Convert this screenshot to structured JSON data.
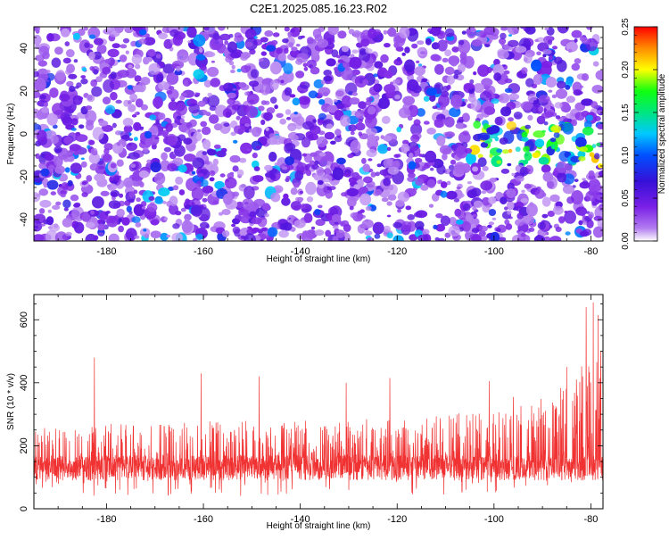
{
  "page": {
    "title": "C2E1.2025.085.16.23.R02"
  },
  "chart_data": [
    {
      "type": "heatmap",
      "xlabel": "Height of straight line (km)",
      "ylabel": "Frequency (Hz)",
      "xlim": [
        -195,
        -77.5
      ],
      "ylim": [
        -50,
        50
      ],
      "x_ticks": [
        -180,
        -160,
        -140,
        -120,
        -100,
        -80
      ],
      "y_ticks": [
        -40,
        -20,
        0,
        20,
        40
      ],
      "colorbar": {
        "label": "Normalized spectral amplitude",
        "range": [
          0.0,
          0.25
        ],
        "ticks": [
          0.0,
          0.05,
          0.1,
          0.15,
          0.2,
          0.25
        ],
        "tick_labels": [
          "0.00",
          "0.05",
          "0.10",
          "0.15",
          "0.20",
          "0.25"
        ],
        "colormap": [
          "#ffffff",
          "#b27cf0",
          "#7a1fe6",
          "#3510d8",
          "#0050ff",
          "#00c8ff",
          "#00e680",
          "#10ff10",
          "#ffff00",
          "#ff8c00",
          "#ff0000"
        ]
      },
      "background_level": 0.03,
      "hotspot_region": {
        "x": [
          -105,
          -78
        ],
        "y": [
          -15,
          5
        ],
        "level": 0.17
      },
      "grid": false
    },
    {
      "type": "line",
      "xlabel": "Height of straight line (km)",
      "ylabel": "SNR (10 * v/v)",
      "xlim": [
        -195,
        -77.5
      ],
      "ylim": [
        0,
        680
      ],
      "x_ticks": [
        -180,
        -160,
        -140,
        -120,
        -100,
        -80
      ],
      "y_ticks": [
        0,
        200,
        400,
        600
      ],
      "series": [
        {
          "color": "#f03232",
          "baseline": 130,
          "envelope": [
            {
              "x": -195,
              "low": 40,
              "high": 260
            },
            {
              "x": -180,
              "low": 40,
              "high": 270
            },
            {
              "x": -150,
              "low": 40,
              "high": 280
            },
            {
              "x": -120,
              "low": 40,
              "high": 290
            },
            {
              "x": -100,
              "low": 50,
              "high": 310
            },
            {
              "x": -90,
              "low": 60,
              "high": 350
            },
            {
              "x": -85,
              "low": 60,
              "high": 420
            },
            {
              "x": -80,
              "low": 60,
              "high": 500
            },
            {
              "x": -77.5,
              "low": 60,
              "high": 520
            }
          ],
          "peaks": [
            {
              "x": -182.5,
              "y": 480
            },
            {
              "x": -160.5,
              "y": 430
            },
            {
              "x": -148.5,
              "y": 420
            },
            {
              "x": -130.5,
              "y": 400
            },
            {
              "x": -121.5,
              "y": 415
            },
            {
              "x": -101,
              "y": 405
            },
            {
              "x": -96,
              "y": 355
            },
            {
              "x": -85,
              "y": 450
            },
            {
              "x": -81,
              "y": 640
            },
            {
              "x": -79.5,
              "y": 655
            },
            {
              "x": -78.5,
              "y": 615
            }
          ]
        }
      ],
      "grid": false
    }
  ]
}
